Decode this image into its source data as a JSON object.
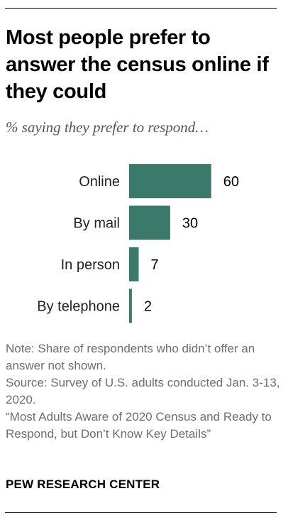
{
  "header": {
    "title": "Most people prefer to answer the census online if they could",
    "subtitle": "% saying they prefer to respond…"
  },
  "chart_data": {
    "type": "bar",
    "orientation": "horizontal",
    "categories": [
      "Online",
      "By mail",
      "In person",
      "By telephone"
    ],
    "values": [
      60,
      30,
      7,
      2
    ],
    "xlim": [
      0,
      100
    ],
    "grid": false,
    "bar_color": "#3b7a6a"
  },
  "footer": {
    "note": "Note: Share of respondents who didn’t offer an answer not shown.",
    "source": "Source: Survey of U.S. adults conducted Jan. 3-13, 2020.",
    "report": "“Most Adults Aware of 2020 Census and Ready to Respond, but Don’t Know Key Details”",
    "org": "PEW RESEARCH CENTER"
  }
}
